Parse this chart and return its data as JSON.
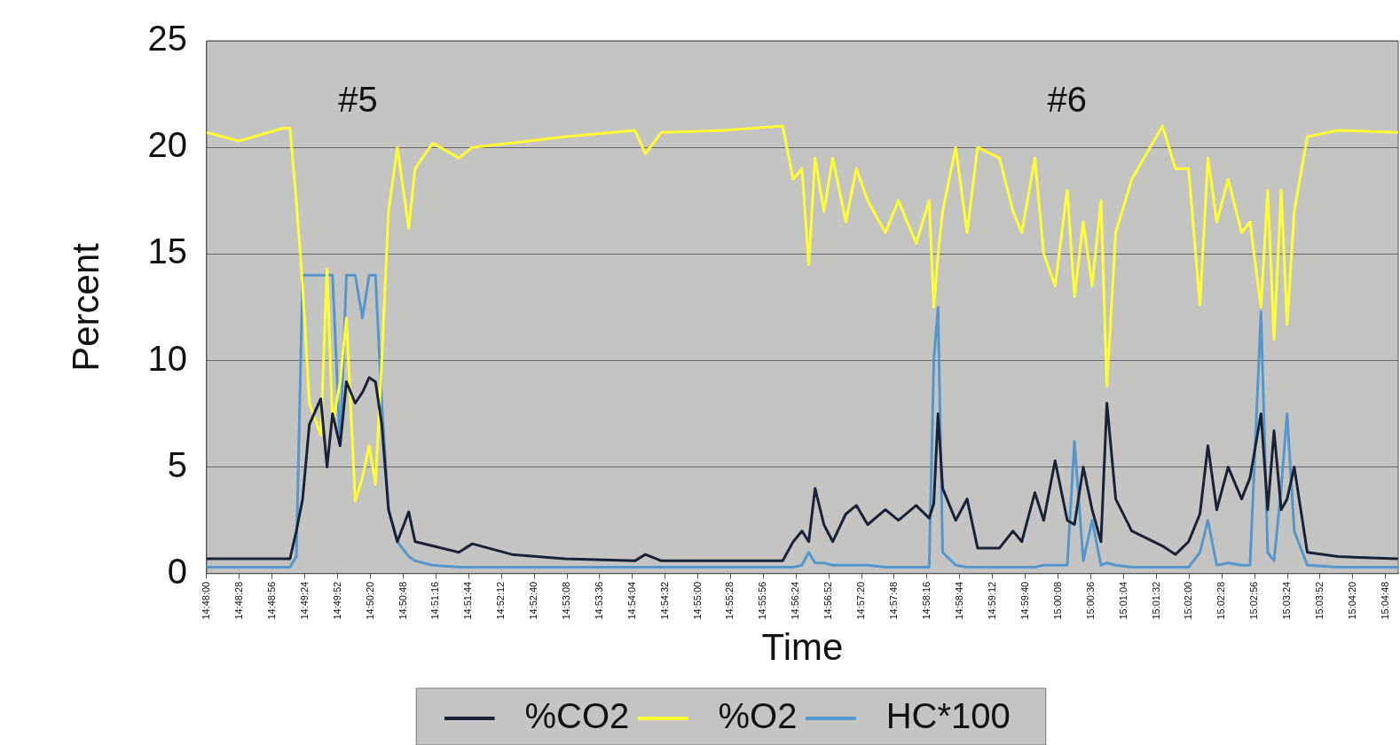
{
  "chart_data": {
    "type": "line",
    "xlabel": "Time",
    "ylabel": "Percent",
    "x": [
      14.8,
      14.8077,
      14.8182,
      14.8198,
      14.8213,
      14.8228,
      14.8244,
      14.8271,
      14.8286,
      14.8299,
      14.8317,
      14.8332,
      14.8353,
      14.837,
      14.8386,
      14.8401,
      14.8416,
      14.8432,
      14.8453,
      14.848,
      14.8495,
      14.8537,
      14.8599,
      14.8631,
      14.8725,
      14.885,
      14.9017,
      14.9042,
      14.908,
      14.9226,
      14.9368,
      14.9393,
      14.9414,
      14.943,
      14.9445,
      14.9466,
      14.9487,
      14.9518,
      14.9543,
      14.957,
      14.9612,
      14.9643,
      14.9685,
      14.9716,
      14.9727,
      14.9737,
      14.9748,
      14.9779,
      14.9806,
      14.9831,
      14.9883,
      14.9915,
      14.9936,
      14.9967,
      14.9988,
      15.0015,
      15.0044,
      15.0061,
      15.0082,
      15.0103,
      15.0124,
      15.0138,
      15.0159,
      15.0197,
      15.027,
      15.0301,
      15.0332,
      15.0359,
      15.0378,
      15.0399,
      15.0426,
      15.0458,
      15.0478,
      15.0504,
      15.052,
      15.0535,
      15.0552,
      15.0566,
      15.0583,
      15.0614,
      15.0687,
      15.0827
    ],
    "series": [
      {
        "name": "%CO2",
        "color": "#1a2238",
        "values": [
          0.7,
          0.7,
          0.7,
          0.7,
          2.0,
          3.5,
          7,
          8.2,
          5.0,
          7.5,
          6,
          9,
          8,
          8.5,
          9.2,
          9.0,
          7,
          3,
          1.5,
          2.9,
          1.5,
          1.3,
          1.0,
          1.4,
          0.9,
          0.7,
          0.6,
          0.9,
          0.6,
          0.6,
          0.6,
          1.5,
          2.0,
          1.5,
          4.0,
          2.3,
          1.5,
          2.8,
          3.2,
          2.3,
          3.0,
          2.5,
          3.2,
          2.6,
          3.3,
          7.5,
          4,
          2.5,
          3.5,
          1.2,
          1.2,
          2.0,
          1.5,
          3.8,
          2.5,
          5.3,
          2.5,
          2.3,
          5.0,
          3.0,
          1.5,
          8.0,
          3.5,
          2.0,
          1.3,
          0.9,
          1.5,
          2.8,
          6.0,
          3.0,
          5.0,
          3.5,
          4.5,
          7.5,
          3.0,
          6.7,
          3.0,
          3.5,
          5,
          1.0,
          0.8,
          0.7
        ]
      },
      {
        "name": "%O2",
        "color": "#ffff33",
        "values": [
          20.7,
          20.3,
          20.9,
          20.9,
          17.5,
          13.5,
          8,
          6.5,
          14.3,
          7,
          9,
          12,
          3.4,
          4.5,
          6,
          4.2,
          10,
          17,
          20,
          16.2,
          19,
          20.2,
          19.5,
          20,
          20.2,
          20.5,
          20.8,
          19.7,
          20.7,
          20.8,
          21.0,
          18.5,
          19,
          14.5,
          19.5,
          17,
          19.5,
          16.5,
          19,
          17.5,
          16,
          17.5,
          15.5,
          17.5,
          12.5,
          15,
          17,
          20,
          16,
          20,
          19.5,
          17,
          16,
          19.5,
          15,
          13.5,
          18,
          13.0,
          16.5,
          13.5,
          17.5,
          8.8,
          16,
          18.5,
          21.0,
          19,
          19,
          12.6,
          19.5,
          16.5,
          18.5,
          16,
          16.5,
          12.5,
          18,
          11.0,
          18,
          11.7,
          17,
          20.5,
          20.8,
          20.7
        ]
      },
      {
        "name": "HC*100",
        "color": "#5597cc",
        "values": [
          0.3,
          0.3,
          0.3,
          0.3,
          0.8,
          14,
          14,
          14,
          14,
          14,
          6,
          14,
          14,
          12,
          14,
          14,
          8,
          3,
          1.5,
          0.8,
          0.6,
          0.4,
          0.3,
          0.3,
          0.3,
          0.3,
          0.3,
          0.3,
          0.3,
          0.3,
          0.3,
          0.3,
          0.4,
          1.0,
          0.5,
          0.5,
          0.4,
          0.4,
          0.4,
          0.4,
          0.3,
          0.3,
          0.3,
          0.3,
          10,
          12.5,
          1.0,
          0.4,
          0.3,
          0.3,
          0.3,
          0.3,
          0.3,
          0.3,
          0.4,
          0.4,
          0.4,
          6.2,
          0.6,
          2.5,
          0.4,
          0.5,
          0.4,
          0.3,
          0.3,
          0.3,
          0.3,
          1.0,
          2.5,
          0.4,
          0.5,
          0.4,
          0.4,
          12.3,
          1.0,
          0.6,
          4,
          7.5,
          2.0,
          0.4,
          0.3,
          0.3
        ]
      }
    ],
    "xlim": [
      14.8,
      15.083
    ],
    "xticks": [
      {
        "value": 14.8,
        "label": "14:48:00"
      },
      {
        "value": 14.8078,
        "label": "14:48:28"
      },
      {
        "value": 14.8156,
        "label": "14:48:56"
      },
      {
        "value": 14.8233,
        "label": "14:49:24"
      },
      {
        "value": 14.8311,
        "label": "14:49:52"
      },
      {
        "value": 14.8389,
        "label": "14:50:20"
      },
      {
        "value": 14.8467,
        "label": "14:50:48"
      },
      {
        "value": 14.8544,
        "label": "14:51:16"
      },
      {
        "value": 14.8622,
        "label": "14:51:44"
      },
      {
        "value": 14.87,
        "label": "14:52:12"
      },
      {
        "value": 14.8778,
        "label": "14:52:40"
      },
      {
        "value": 14.8856,
        "label": "14:53:08"
      },
      {
        "value": 14.8933,
        "label": "14:53:36"
      },
      {
        "value": 14.9011,
        "label": "14:54:04"
      },
      {
        "value": 14.9089,
        "label": "14:54:32"
      },
      {
        "value": 14.9167,
        "label": "14:55:00"
      },
      {
        "value": 14.9244,
        "label": "14:55:28"
      },
      {
        "value": 14.9322,
        "label": "14:55:56"
      },
      {
        "value": 14.94,
        "label": "14:56:24"
      },
      {
        "value": 14.9478,
        "label": "14:56:52"
      },
      {
        "value": 14.9556,
        "label": "14:57:20"
      },
      {
        "value": 14.9633,
        "label": "14:57:48"
      },
      {
        "value": 14.9711,
        "label": "14:58:16"
      },
      {
        "value": 14.9789,
        "label": "14:58:44"
      },
      {
        "value": 14.9867,
        "label": "14:59:12"
      },
      {
        "value": 14.9944,
        "label": "14:59:40"
      },
      {
        "value": 15.0022,
        "label": "15:00:08"
      },
      {
        "value": 15.01,
        "label": "15:00:36"
      },
      {
        "value": 15.0178,
        "label": "15:01:04"
      },
      {
        "value": 15.0256,
        "label": "15:01:32"
      },
      {
        "value": 15.0333,
        "label": "15:02:00"
      },
      {
        "value": 15.0411,
        "label": "15:02:28"
      },
      {
        "value": 15.0489,
        "label": "15:02:56"
      },
      {
        "value": 15.0567,
        "label": "15:03:24"
      },
      {
        "value": 15.0644,
        "label": "15:03:52"
      },
      {
        "value": 15.0722,
        "label": "15:04:20"
      },
      {
        "value": 15.08,
        "label": "15:04:48"
      }
    ],
    "ylim": [
      0,
      25
    ],
    "yticks": [
      0,
      5,
      10,
      15,
      20,
      25
    ],
    "annotations": [
      "#5",
      "#6"
    ],
    "grid": "y",
    "legend": "bottom",
    "marker": "none",
    "line_style": "solid"
  }
}
